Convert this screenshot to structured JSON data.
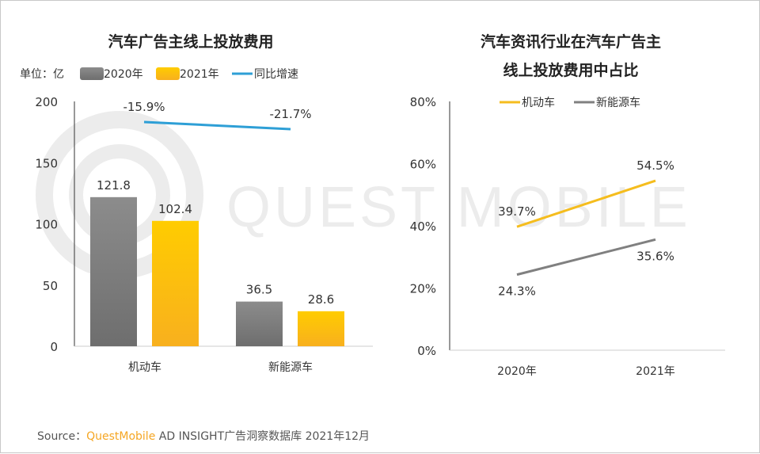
{
  "chart_data": [
    {
      "type": "bar",
      "title": "汽车广告主线上投放费用",
      "unit_label": "单位：亿",
      "categories": [
        "机动车",
        "新能源车"
      ],
      "series": [
        {
          "name": "2020年",
          "values": [
            121.8,
            36.5
          ],
          "color": "#7f7f7f"
        },
        {
          "name": "2021年",
          "values": [
            102.4,
            28.6
          ],
          "color": "#ffc000"
        }
      ],
      "line_series": {
        "name": "同比增速",
        "values": [
          -15.9,
          -21.7
        ],
        "labels": [
          "-15.9%",
          "-21.7%"
        ],
        "color": "#2e9fd6"
      },
      "yticks": [
        "0",
        "50",
        "100",
        "150",
        "200"
      ],
      "ylim": [
        0,
        200
      ],
      "grid": false,
      "legend": "top-left"
    },
    {
      "type": "line",
      "title": [
        "汽车资讯行业在汽车广告主",
        "线上投放费用中占比"
      ],
      "x": [
        "2020年",
        "2021年"
      ],
      "series": [
        {
          "name": "机动车",
          "values": [
            39.7,
            54.5
          ],
          "labels": [
            "39.7%",
            "54.5%"
          ],
          "color": "#f5bd1e"
        },
        {
          "name": "新能源车",
          "values": [
            24.3,
            35.6
          ],
          "labels": [
            "24.3%",
            "35.6%"
          ],
          "color": "#808080"
        }
      ],
      "yticks": [
        "0%",
        "20%",
        "40%",
        "60%",
        "80%"
      ],
      "ylim": [
        0,
        80
      ],
      "grid": false,
      "legend": "top"
    }
  ],
  "watermark": "QUEST MOBILE",
  "source": {
    "prefix": "Source：",
    "brand": "QuestMobile",
    "rest": " AD INSIGHT广告洞察数据库 2021年12月"
  }
}
